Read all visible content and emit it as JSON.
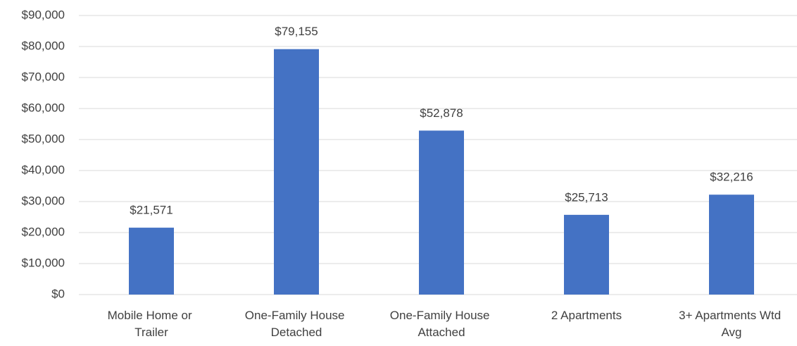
{
  "chart_data": {
    "type": "bar",
    "categories": [
      "Mobile Home or Trailer",
      "One-Family House Detached",
      "One-Family House Attached",
      "2 Apartments",
      "3+ Apartments Wtd Avg"
    ],
    "values": [
      21571,
      79155,
      52878,
      25713,
      32216
    ],
    "value_labels": [
      "$21,571",
      "$79,155",
      "$52,878",
      "$25,713",
      "$32,216"
    ],
    "color": "#4472c4",
    "ylim": [
      0,
      90000
    ],
    "yticks": [
      {
        "value": 0,
        "label": "$0"
      },
      {
        "value": 10000,
        "label": "$10,000"
      },
      {
        "value": 20000,
        "label": "$20,000"
      },
      {
        "value": 30000,
        "label": "$30,000"
      },
      {
        "value": 40000,
        "label": "$40,000"
      },
      {
        "value": 50000,
        "label": "$50,000"
      },
      {
        "value": 60000,
        "label": "$60,000"
      },
      {
        "value": 70000,
        "label": "$70,000"
      },
      {
        "value": 80000,
        "label": "$80,000"
      },
      {
        "value": 90000,
        "label": "$90,000"
      }
    ],
    "grid": true
  }
}
